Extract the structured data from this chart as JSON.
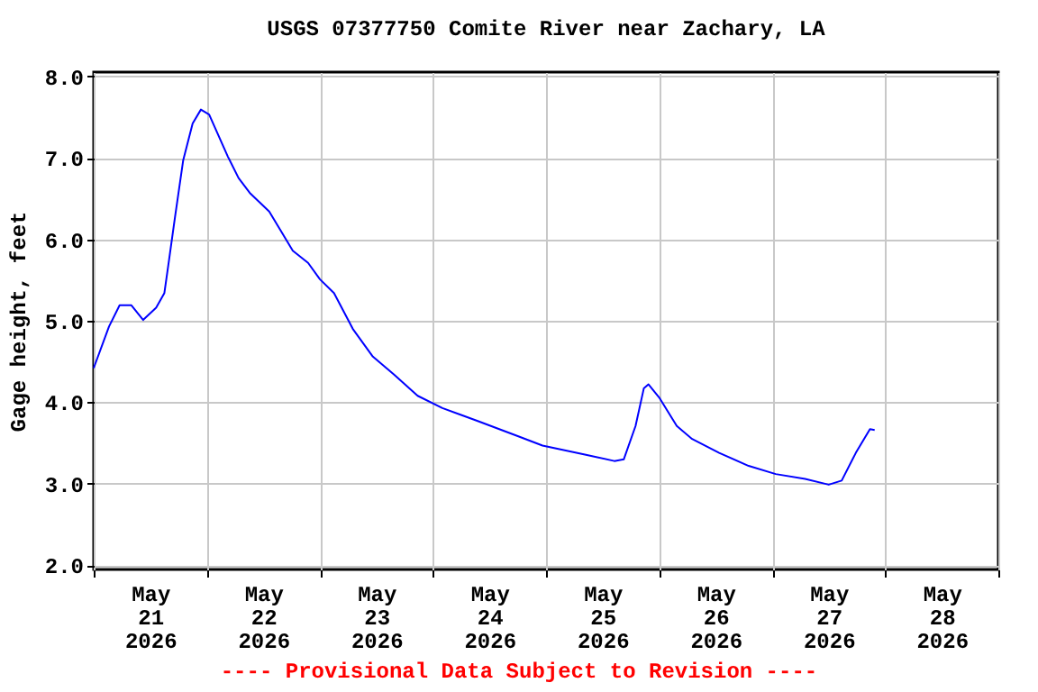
{
  "chart_data": {
    "type": "line",
    "title": "USGS 07377750 Comite River near Zachary, LA",
    "ylabel": "Gage height, feet",
    "annotations": [
      "---- Provisional Data Subject to Revision ----"
    ],
    "x": [
      "2026-05-21T00:00",
      "2026-05-21T03:15",
      "2026-05-21T05:30",
      "2026-05-21T08:00",
      "2026-05-21T10:30",
      "2026-05-21T13:15",
      "2026-05-21T15:00",
      "2026-05-21T16:00",
      "2026-05-21T17:15",
      "2026-05-21T19:00",
      "2026-05-21T21:00",
      "2026-05-21T22:45",
      "2026-05-22T00:30",
      "2026-05-22T04:30",
      "2026-05-22T06:45",
      "2026-05-22T09:15",
      "2026-05-22T13:15",
      "2026-05-22T18:15",
      "2026-05-22T21:30",
      "2026-05-23T00:00",
      "2026-05-23T03:00",
      "2026-05-23T07:00",
      "2026-05-23T11:15",
      "2026-05-23T15:45",
      "2026-05-23T20:45",
      "2026-05-24T02:00",
      "2026-05-24T09:30",
      "2026-05-24T18:15",
      "2026-05-24T23:15",
      "2026-05-25T08:15",
      "2026-05-25T14:30",
      "2026-05-25T16:30",
      "2026-05-25T19:00",
      "2026-05-25T20:45",
      "2026-05-25T21:45",
      "2026-05-26T00:00",
      "2026-05-26T03:45",
      "2026-05-26T07:00",
      "2026-05-26T12:45",
      "2026-05-26T19:00",
      "2026-05-27T00:45",
      "2026-05-27T07:00",
      "2026-05-27T12:00",
      "2026-05-27T14:45",
      "2026-05-27T17:45",
      "2026-05-27T20:45",
      "2026-05-27T21:45"
    ],
    "series": [
      {
        "color": "#0000ff",
        "values": [
          4.42,
          4.93,
          5.19,
          5.19,
          5.01,
          5.16,
          5.34,
          5.75,
          6.27,
          6.97,
          7.42,
          7.59,
          7.53,
          7.01,
          6.75,
          6.56,
          6.34,
          5.86,
          5.71,
          5.51,
          5.34,
          4.9,
          4.56,
          4.34,
          4.08,
          3.93,
          3.77,
          3.58,
          3.47,
          3.36,
          3.28,
          3.3,
          3.71,
          4.17,
          4.22,
          4.06,
          3.71,
          3.55,
          3.38,
          3.22,
          3.12,
          3.06,
          2.99,
          3.04,
          3.38,
          3.67,
          3.66
        ]
      }
    ],
    "xlim": [
      "2026-05-21T00:00",
      "2026-05-29T00:00"
    ],
    "xticks": [
      {
        "value": "2026-05-21T00:00",
        "label": null
      },
      {
        "value": "2026-05-21T12:00",
        "label": "May\n21\n2026"
      },
      {
        "value": "2026-05-22T00:00",
        "label": null
      },
      {
        "value": "2026-05-22T12:00",
        "label": "May\n22\n2026"
      },
      {
        "value": "2026-05-23T00:00",
        "label": null
      },
      {
        "value": "2026-05-23T12:00",
        "label": "May\n23\n2026"
      },
      {
        "value": "2026-05-24T00:00",
        "label": null
      },
      {
        "value": "2026-05-24T12:00",
        "label": "May\n24\n2026"
      },
      {
        "value": "2026-05-25T00:00",
        "label": null
      },
      {
        "value": "2026-05-25T12:00",
        "label": "May\n25\n2026"
      },
      {
        "value": "2026-05-26T00:00",
        "label": null
      },
      {
        "value": "2026-05-26T12:00",
        "label": "May\n26\n2026"
      },
      {
        "value": "2026-05-27T00:00",
        "label": null
      },
      {
        "value": "2026-05-27T12:00",
        "label": "May\n27\n2026"
      },
      {
        "value": "2026-05-28T00:00",
        "label": null
      },
      {
        "value": "2026-05-28T12:00",
        "label": "May\n28\n2026"
      },
      {
        "value": "2026-05-29T00:00",
        "label": null
      }
    ],
    "ylim": [
      1.95,
      8.05
    ],
    "yticks": [
      {
        "value": 2,
        "label": "2.0"
      },
      {
        "value": 3,
        "label": "3.0"
      },
      {
        "value": 4,
        "label": "4.0"
      },
      {
        "value": 5,
        "label": "5.0"
      },
      {
        "value": 6,
        "label": "6.0"
      },
      {
        "value": 7,
        "label": "7.0"
      },
      {
        "value": 8,
        "label": "8.0"
      }
    ],
    "grid": true,
    "marker": "none",
    "line_style": "solid"
  }
}
